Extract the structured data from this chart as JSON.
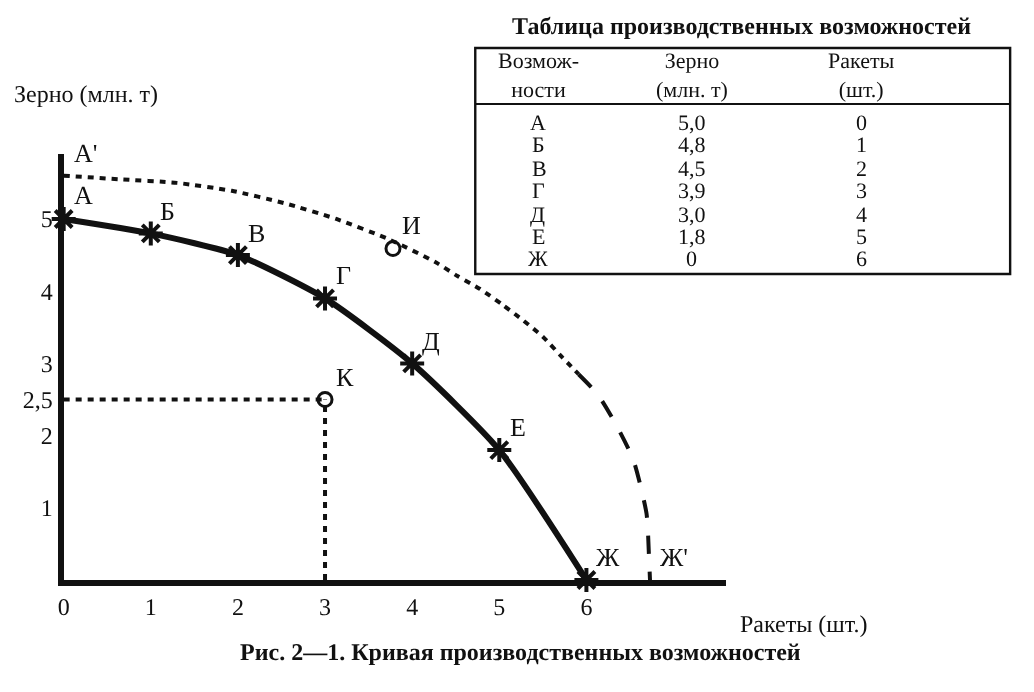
{
  "chart_data": [
    {
      "type": "line",
      "xlabel": "Ракеты (шт.)",
      "ylabel": "Зерно (млн. т)",
      "xlim": [
        0,
        7.6
      ],
      "ylim": [
        0,
        5.9
      ],
      "xticks": [
        0,
        1,
        2,
        3,
        4,
        5,
        6
      ],
      "yticks": [
        1,
        2,
        {
          "value": 2.5,
          "label": "2,5"
        },
        3,
        4,
        5
      ],
      "series": [
        {
          "color": "#111111",
          "x": [
            0,
            1,
            2,
            3,
            4,
            5,
            6
          ],
          "values": [
            5.0,
            4.8,
            4.5,
            3.9,
            3.0,
            1.8,
            0
          ],
          "marker": "cross",
          "line_style": "solid"
        },
        {
          "color": "#111111",
          "x": [
            0,
            0.64,
            1.3,
            1.93,
            2.53,
            3.13,
            3.73,
            4.27,
            4.52,
            4.78,
            5.04,
            5.28,
            5.5,
            5.71,
            5.91
          ],
          "values": [
            5.6,
            5.55,
            5.5,
            5.39,
            5.22,
            5.0,
            4.72,
            4.4,
            4.21,
            4.03,
            3.81,
            3.59,
            3.37,
            3.1,
            2.85
          ],
          "marker": "none",
          "line_style": "dotted"
        },
        {
          "color": "#111111",
          "x": [
            5.91,
            6.13,
            6.35,
            6.54,
            6.69,
            6.72,
            6.73
          ],
          "values": [
            2.85,
            2.57,
            2.13,
            1.66,
            0.92,
            0.28,
            0
          ],
          "marker": "none",
          "line_style": "dashed"
        },
        {
          "color": "#111111",
          "x": [
            0,
            3
          ],
          "values": [
            2.5,
            2.5
          ],
          "marker": "none",
          "line_style": "dotted"
        },
        {
          "color": "#111111",
          "x": [
            3,
            3
          ],
          "values": [
            0,
            2.5
          ],
          "marker": "none",
          "line_style": "dotted"
        },
        {
          "type": "scatter",
          "color": "#111111",
          "x": [
            3,
            3.78
          ],
          "values": [
            2.5,
            4.59
          ],
          "marker": "circle"
        }
      ],
      "annotations": [
        {
          "text": "А",
          "x": 0,
          "y": 5.0
        },
        {
          "text": "Б",
          "x": 1,
          "y": 4.8
        },
        {
          "text": "В",
          "x": 2,
          "y": 4.5
        },
        {
          "text": "Г",
          "x": 3,
          "y": 3.9
        },
        {
          "text": "Д",
          "x": 4,
          "y": 3.0
        },
        {
          "text": "Е",
          "x": 5,
          "y": 1.8
        },
        {
          "text": "Ж",
          "x": 6,
          "y": 0
        },
        {
          "text": "А'",
          "x": 0,
          "y": 5.6
        },
        {
          "text": "И",
          "x": 3.78,
          "y": 4.59
        },
        {
          "text": "К",
          "x": 3,
          "y": 2.5
        },
        {
          "text": "Ж'",
          "x": 6.73,
          "y": 0
        },
        "Рис. 2—1. Кривая производственных возможностей"
      ]
    },
    {
      "type": "other",
      "title": "Таблица производственных возможностей",
      "categories": [
        "А",
        "Б",
        "В",
        "Г",
        "Д",
        "Е",
        "Ж"
      ],
      "series": [
        {
          "name": "Зерно\n(млн. т)",
          "values": [
            5.0,
            4.8,
            4.5,
            3.9,
            3.0,
            1.8,
            0
          ],
          "value_labels": [
            "5,0",
            "4,8",
            "4,5",
            "3,9",
            "3,0",
            "1,8",
            "0"
          ]
        },
        {
          "name": "Ракеты\n(шт.)",
          "values": [
            0,
            1,
            2,
            3,
            4,
            5,
            6
          ]
        }
      ],
      "data_labels": true,
      "annotations": [
        "Возмож-\nности"
      ]
    }
  ]
}
